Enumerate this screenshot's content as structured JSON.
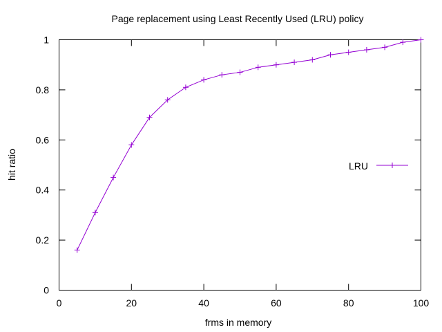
{
  "chart_data": {
    "type": "line",
    "title": "Page replacement using Least Recently Used (LRU) policy",
    "xlabel": "frms in memory",
    "ylabel": "hit ratio",
    "xlim": [
      0,
      100
    ],
    "ylim": [
      0,
      1
    ],
    "xticks": [
      0,
      20,
      40,
      60,
      80,
      100
    ],
    "yticks": [
      0,
      0.2,
      0.4,
      0.6,
      0.8,
      1
    ],
    "xtick_labels": [
      "0",
      "20",
      "40",
      "60",
      "80",
      "100"
    ],
    "ytick_labels": [
      "0",
      "0.2",
      "0.4",
      "0.6",
      "0.8",
      "1"
    ],
    "grid": false,
    "legend_position": "right",
    "series": [
      {
        "name": "LRU",
        "color": "#9400d3",
        "marker": "plus",
        "x": [
          5,
          10,
          15,
          20,
          25,
          30,
          35,
          40,
          45,
          50,
          55,
          60,
          65,
          70,
          75,
          80,
          85,
          90,
          95,
          100
        ],
        "y": [
          0.16,
          0.31,
          0.45,
          0.58,
          0.69,
          0.76,
          0.81,
          0.84,
          0.86,
          0.87,
          0.89,
          0.9,
          0.91,
          0.92,
          0.94,
          0.95,
          0.96,
          0.97,
          0.99,
          1.0
        ]
      }
    ]
  }
}
